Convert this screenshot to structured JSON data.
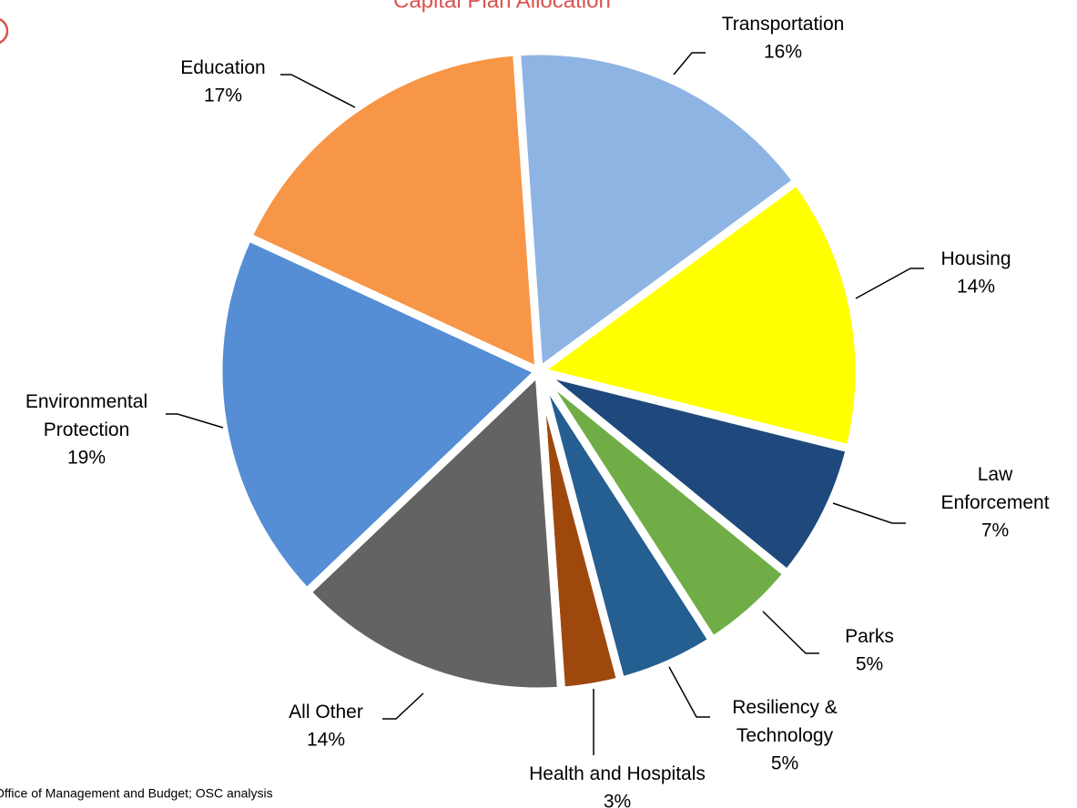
{
  "chart_data": {
    "type": "pie",
    "title": "Capital Plan Allocation",
    "source": "Office of Management and Budget; OSC analysis",
    "categories": [
      "Transportation",
      "Housing",
      "Law Enforcement",
      "Parks",
      "Resiliency & Technology",
      "Health and Hospitals",
      "All Other",
      "Environmental Protection",
      "Education"
    ],
    "values": [
      16,
      14,
      7,
      5,
      5,
      3,
      14,
      19,
      17
    ],
    "value_labels": [
      "16%",
      "14%",
      "7%",
      "5%",
      "5%",
      "3%",
      "14%",
      "19%",
      "17%"
    ],
    "colors": [
      "#8EB4E3",
      "#FFFF00",
      "#1F497D",
      "#70AD47",
      "#255E91",
      "#9E480E",
      "#636363",
      "#558ED5",
      "#F79646"
    ]
  }
}
